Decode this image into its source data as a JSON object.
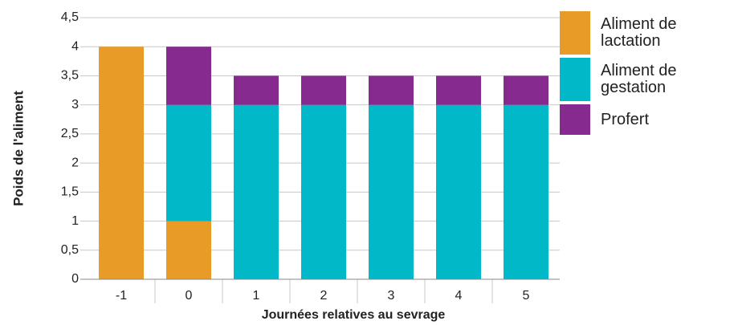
{
  "chart_data": {
    "type": "stacked_bar",
    "x_label": "Journées relatives au sevrage",
    "y_label": "Poids de l'aliment",
    "categories": [
      "-1",
      "0",
      "1",
      "2",
      "3",
      "4",
      "5"
    ],
    "series": [
      {
        "name": "Aliment de lactation",
        "color": "#e89b26",
        "values": [
          4,
          1,
          0,
          0,
          0,
          0,
          0
        ]
      },
      {
        "name": "Aliment de gestation",
        "color": "#00b8c8",
        "values": [
          0,
          2,
          3,
          3,
          3,
          3,
          3
        ]
      },
      {
        "name": "Profert",
        "color": "#862a8f",
        "values": [
          0,
          1,
          0.5,
          0.5,
          0.5,
          0.5,
          0.5
        ]
      }
    ],
    "ylim": [
      0,
      4.5
    ],
    "yticks": [
      0,
      {
        "value": 0.5,
        "label": "0,5"
      },
      1,
      {
        "value": 1.5,
        "label": "1,5"
      },
      2,
      {
        "value": 2.5,
        "label": "2,5"
      },
      3,
      {
        "value": 3.5,
        "label": "3,5"
      },
      4,
      {
        "value": 4.5,
        "label": "4,5"
      }
    ],
    "grid": true,
    "legend": "right"
  }
}
